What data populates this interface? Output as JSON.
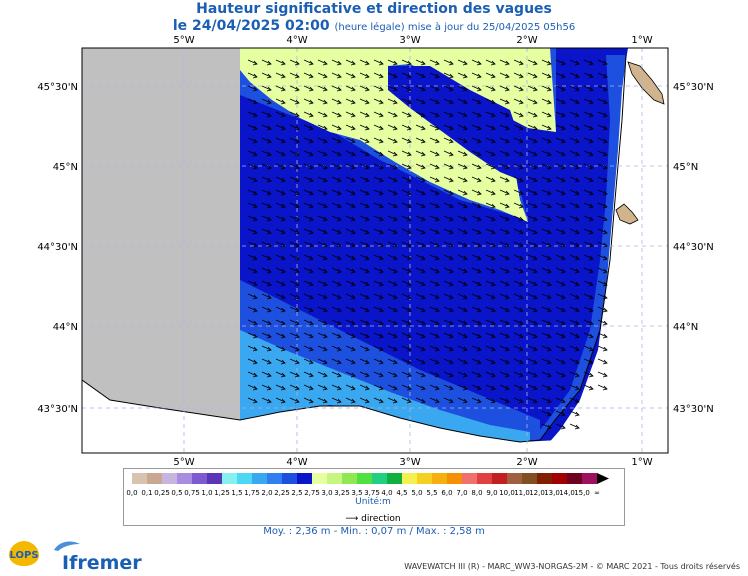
{
  "title": "Hauteur significative et direction des vagues",
  "subtitle_date": "le 24/04/2025 02:00",
  "subtitle_info": "(heure légale) mise à jour du 25/04/2025 05h56",
  "axes": {
    "lon_labels": [
      "5°W",
      "4°W",
      "3°W",
      "2°W",
      "1°W"
    ],
    "lat_labels": [
      "45°30'N",
      "45°N",
      "44°30'N",
      "44°N",
      "43°30'N"
    ]
  },
  "legend": {
    "values": [
      "0,0",
      "0,1",
      "0,25",
      "0,5",
      "0,75",
      "1,0",
      "1,25",
      "1,5",
      "1,75",
      "2,0",
      "2,25",
      "2,5",
      "2,75",
      "3,0",
      "3,25",
      "3,5",
      "3,75",
      "4,0",
      "4,5",
      "5,0",
      "5,5",
      "6,0",
      "7,0",
      "8,0",
      "9,0",
      "10,0",
      "11,0",
      "12,0",
      "13,0",
      "14,0",
      "15,0",
      "∞"
    ],
    "colors": [
      "#d8c3b0",
      "#c8a890",
      "#c7b5e0",
      "#a98be0",
      "#7d5ad0",
      "#5a35b8",
      "#86f0f0",
      "#4dd7f5",
      "#3aa8f0",
      "#2f7ff0",
      "#1e50e0",
      "#0a14c8",
      "#e6ffa0",
      "#c6f580",
      "#90e850",
      "#50e040",
      "#20d080",
      "#10b040",
      "#f5f050",
      "#f5d020",
      "#f5b010",
      "#f59000",
      "#f07070",
      "#e04040",
      "#c02020",
      "#a06040",
      "#805020",
      "#802000",
      "#a00000",
      "#700020",
      "#a01060"
    ],
    "unit": "Unité:m",
    "direction_label": "direction"
  },
  "stats": "Moy. : 2,36 m   -   Min. : 0,07 m / Max. : 2,58 m",
  "footer": "WAVEWATCH III (R) - MARC_WW3-NORGAS-2M - © MARC 2021 - Tous droits réservés",
  "logos": {
    "lops": "LOPS",
    "ifremer": "Ifremer"
  },
  "map_colors": {
    "land": "#c0c0c0",
    "coast_land": "#d2b48c",
    "deep_blue": "#0a14c8",
    "mid_blue": "#1e50e0",
    "light_blue": "#3aa8f0",
    "yellow_green": "#e6ffa0"
  }
}
